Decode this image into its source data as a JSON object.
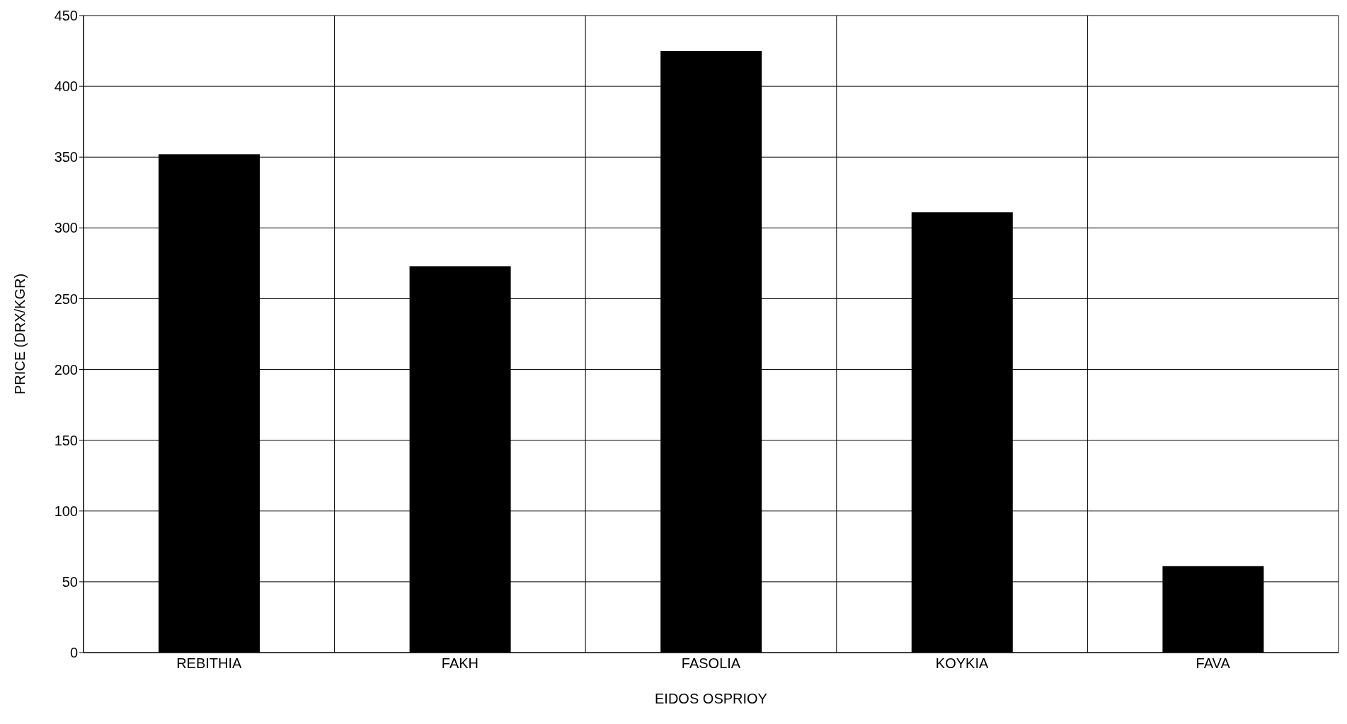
{
  "chart_data": {
    "type": "bar",
    "xlabel": "EIDOS OSPRIOY",
    "ylabel": "PRICE (DRX/KGR)",
    "categories": [
      "REBITHIA",
      "FAKH",
      "FASOLIA",
      "KOYKIA",
      "FAVA"
    ],
    "values": [
      352,
      273,
      425,
      311,
      61
    ],
    "color": "#000000",
    "ylim": [
      0,
      450
    ],
    "yticks": [
      0,
      50,
      100,
      150,
      200,
      250,
      300,
      350,
      400,
      450
    ],
    "grid": true,
    "legend": false
  }
}
